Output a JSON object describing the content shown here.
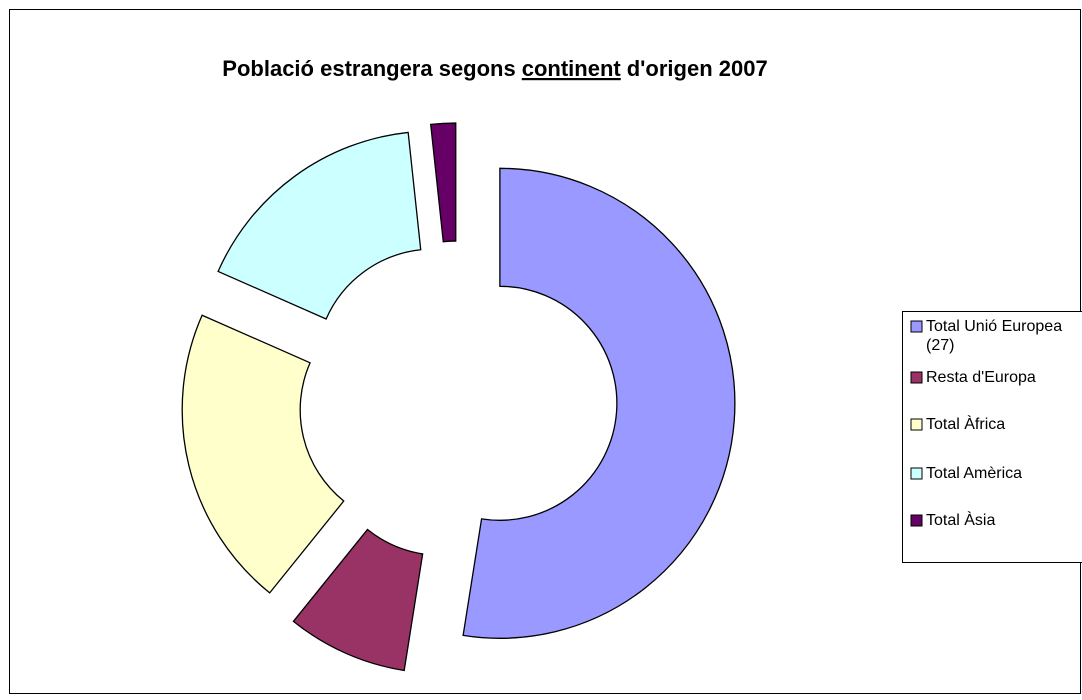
{
  "chart_data": {
    "type": "donut",
    "title": [
      "Població estrangera segons",
      "continent",
      "d'origen 2007"
    ],
    "categories": [
      "Total Unió Europea (27)",
      "Resta d'Europa",
      "Total Àfrica",
      "Total Amèrica",
      "Total Àsia"
    ],
    "values": [
      52.5,
      8.3,
      20.8,
      16.7,
      1.7
    ],
    "colors": [
      "#9999ff",
      "#993366",
      "#ffffcc",
      "#ccffff",
      "#660066"
    ],
    "legend": "right"
  }
}
